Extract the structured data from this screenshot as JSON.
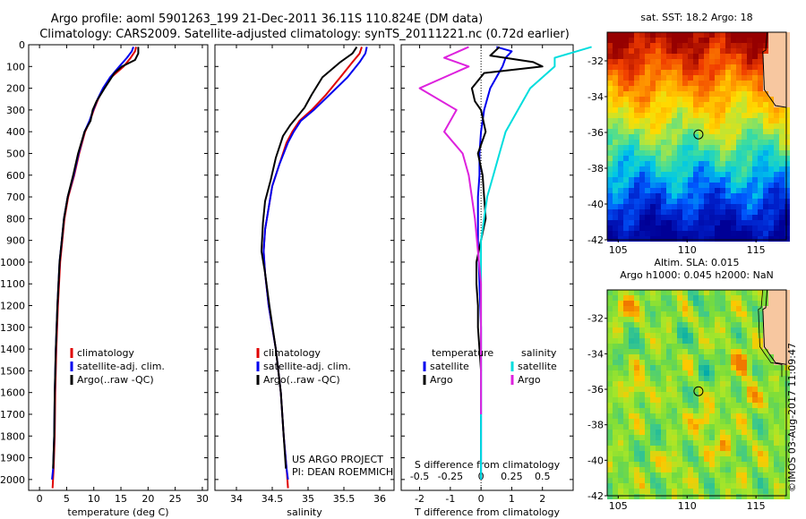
{
  "header": {
    "line1": "Argo profile: aoml 5901263_199 21-Dec-2011 36.11S 110.824E (DM data)",
    "line2": "Climatology: CARS2009. Satellite-adjusted climatology: synTS_20111221.nc (0.72d earlier)"
  },
  "side_text": "©IMOS 03-Aug-2017 11:09:47",
  "colors": {
    "climatology": "#e00000",
    "satellite": "#0000ee",
    "argo": "#000000",
    "cyan": "#00dddd",
    "magenta": "#dd22dd"
  },
  "chart_data": [
    {
      "id": "temperature",
      "type": "line",
      "xlabel": "temperature (deg C)",
      "xlim": [
        -2,
        31
      ],
      "xticks": [
        0,
        5,
        10,
        15,
        20,
        25,
        30
      ],
      "ylim": [
        0,
        2050
      ],
      "yticks": [
        0,
        100,
        200,
        300,
        400,
        500,
        600,
        700,
        800,
        900,
        1000,
        1100,
        1200,
        1300,
        1400,
        1500,
        1600,
        1700,
        1800,
        1900,
        2000
      ],
      "reversed_y": true,
      "legend": {
        "position": "lower-left",
        "entries": [
          "climatology",
          "satellite-adj. clim.",
          "Argo(..raw -QC)"
        ]
      },
      "series": [
        {
          "name": "climatology",
          "color": "climatology",
          "x": [
            17.8,
            17.6,
            16.8,
            15.5,
            13.2,
            11.8,
            10.8,
            10.0,
            9.3,
            8.4,
            7.3,
            6.4,
            5.3,
            4.6,
            4.2,
            3.8,
            3.4,
            3.1,
            2.9,
            2.8,
            2.6,
            2.4
          ],
          "y": [
            10,
            30,
            60,
            100,
            150,
            200,
            250,
            300,
            350,
            400,
            500,
            600,
            700,
            800,
            900,
            1000,
            1200,
            1400,
            1600,
            1800,
            1950,
            2040
          ]
        },
        {
          "name": "satellite-adj. clim.",
          "color": "satellite",
          "x": [
            17.3,
            17.0,
            16.1,
            14.7,
            13.0,
            11.7,
            10.7,
            9.9,
            9.2,
            8.3,
            7.2,
            6.3,
            5.2,
            4.5,
            4.1,
            3.7,
            3.3,
            3.0,
            2.8,
            2.7,
            2.5,
            2.3
          ],
          "y": [
            10,
            30,
            60,
            100,
            150,
            200,
            250,
            300,
            350,
            400,
            500,
            600,
            700,
            800,
            900,
            1000,
            1200,
            1400,
            1600,
            1800,
            1950,
            2000
          ]
        },
        {
          "name": "Argo(..raw -QC)",
          "color": "argo",
          "x": [
            18.2,
            18.2,
            17.6,
            15.2,
            13.8,
            12.0,
            10.5,
            9.8,
            9.4,
            8.3,
            7.1,
            6.2,
            5.2,
            4.5,
            4.1,
            3.7,
            3.3,
            3.0,
            2.8,
            2.7,
            2.5
          ],
          "y": [
            10,
            40,
            70,
            100,
            130,
            200,
            260,
            300,
            350,
            400,
            500,
            600,
            700,
            800,
            900,
            1000,
            1200,
            1400,
            1600,
            1800,
            1950
          ]
        }
      ]
    },
    {
      "id": "salinity",
      "type": "line",
      "xlabel": "salinity",
      "xlim": [
        33.7,
        36.2
      ],
      "xticks": [
        34,
        34.5,
        35,
        35.5,
        36
      ],
      "xticklabels": [
        "34",
        "34.5",
        "35",
        "35.5",
        "36"
      ],
      "ylim": [
        0,
        2050
      ],
      "reversed_y": true,
      "legend": {
        "position": "lower-left",
        "entries": [
          "climatology",
          "satellite-adj. clim.",
          "Argo(..raw -QC)"
        ]
      },
      "annotation": [
        "US ARGO PROJECT",
        "PI: DEAN ROEMMICH"
      ],
      "series": [
        {
          "name": "climatology",
          "color": "climatology",
          "x": [
            35.75,
            35.72,
            35.62,
            35.45,
            35.25,
            35.05,
            34.88,
            34.78,
            34.7,
            34.6,
            34.5,
            34.45,
            34.4,
            34.38,
            34.4,
            34.45,
            34.55,
            34.62,
            34.66,
            34.7,
            34.72
          ],
          "y": [
            10,
            40,
            80,
            150,
            230,
            300,
            350,
            400,
            450,
            550,
            650,
            750,
            850,
            950,
            1050,
            1200,
            1400,
            1600,
            1800,
            1950,
            2040
          ]
        },
        {
          "name": "satellite-adj. clim.",
          "color": "satellite",
          "x": [
            35.82,
            35.8,
            35.72,
            35.55,
            35.3,
            35.08,
            34.9,
            34.8,
            34.72,
            34.6,
            34.5,
            34.45,
            34.4,
            34.38,
            34.4,
            34.45,
            34.55,
            34.62,
            34.66,
            34.7,
            34.72
          ],
          "y": [
            10,
            40,
            80,
            150,
            230,
            300,
            350,
            400,
            450,
            550,
            650,
            750,
            850,
            950,
            1050,
            1200,
            1400,
            1600,
            1800,
            1950,
            2000
          ]
        },
        {
          "name": "Argo(..raw -QC)",
          "color": "argo",
          "x": [
            35.68,
            35.62,
            35.45,
            35.2,
            35.05,
            34.95,
            34.85,
            34.75,
            34.65,
            34.55,
            34.48,
            34.4,
            34.37,
            34.35,
            34.4,
            34.46,
            34.55,
            34.62,
            34.66,
            34.69
          ],
          "y": [
            10,
            40,
            80,
            150,
            230,
            290,
            330,
            370,
            420,
            520,
            620,
            720,
            820,
            950,
            1050,
            1200,
            1400,
            1600,
            1800,
            1950
          ]
        }
      ]
    },
    {
      "id": "difference",
      "type": "line",
      "xlabel": "T difference from climatology",
      "x2label": "S difference from climatology",
      "xlim": [
        -2.6,
        3.0
      ],
      "xticks": [
        -2,
        -1,
        0,
        1,
        2
      ],
      "x2ticks": [
        -0.5,
        -0.25,
        0,
        0.25,
        0.5
      ],
      "x2ticklabels": [
        "-0.5",
        "-0.25",
        "0",
        "0.25",
        "0.5"
      ],
      "ylim": [
        0,
        2050
      ],
      "reversed_y": true,
      "legend": {
        "position": "lower-middle",
        "groups": [
          {
            "title": "temperature",
            "entries": [
              "satellite",
              "Argo"
            ]
          },
          {
            "title": "salinity",
            "entries": [
              "satellite",
              "Argo"
            ]
          }
        ]
      },
      "series": [
        {
          "name": "satellite",
          "group": "temperature",
          "color": "satellite",
          "x": [
            0.5,
            1.0,
            0.8,
            0.7,
            0.5,
            0.3,
            0.2,
            0.1,
            0.05,
            0.0,
            -0.05,
            -0.05,
            -0.1,
            -0.1,
            -0.05,
            0.0,
            0.0,
            0.0,
            0.0,
            0.0
          ],
          "y": [
            10,
            30,
            60,
            100,
            150,
            200,
            250,
            300,
            350,
            400,
            500,
            600,
            700,
            900,
            1100,
            1300,
            1500,
            1700,
            1900,
            2000
          ]
        },
        {
          "name": "Argo",
          "group": "temperature",
          "color": "argo",
          "x": [
            0.6,
            0.3,
            1.7,
            2.0,
            0.1,
            -0.3,
            -0.2,
            0.0,
            0.15,
            -0.1,
            0.05,
            0.1,
            0.15,
            0.0,
            -0.15,
            -0.15,
            -0.1,
            -0.1,
            -0.05,
            0.0
          ],
          "y": [
            10,
            50,
            80,
            100,
            130,
            200,
            260,
            300,
            400,
            500,
            600,
            700,
            800,
            900,
            1000,
            1100,
            1200,
            1300,
            1400,
            1500
          ]
        },
        {
          "name": "satellite",
          "group": "salinity",
          "color": "cyan",
          "x": [
            0.9,
            0.6,
            0.6,
            0.4,
            0.3,
            0.2,
            0.15,
            0.1,
            0.05,
            0.0,
            0.0,
            0.0,
            0.0,
            0.0,
            0.0,
            0.0
          ],
          "y": [
            10,
            60,
            100,
            200,
            300,
            400,
            500,
            600,
            700,
            900,
            1100,
            1300,
            1500,
            1700,
            1900,
            2000
          ]
        },
        {
          "name": "Argo",
          "group": "salinity",
          "color": "magenta",
          "x": [
            -0.1,
            -0.3,
            -0.1,
            -0.5,
            -0.2,
            -0.3,
            -0.15,
            -0.1,
            -0.05,
            0.0,
            0.0,
            0.0
          ],
          "y": [
            10,
            60,
            100,
            200,
            300,
            400,
            500,
            600,
            800,
            1100,
            1400,
            1700
          ]
        }
      ]
    },
    {
      "id": "sst_map",
      "type": "heatmap",
      "title": "sat. SST: 18.2 Argo: 18",
      "xlim": [
        104.2,
        117.2
      ],
      "xticks": [
        105,
        110,
        115
      ],
      "ylim": [
        -42,
        -30.4
      ],
      "yticks": [
        -42,
        -40,
        -38,
        -36,
        -34,
        -32
      ],
      "profile_location": [
        110.824,
        -36.11
      ]
    },
    {
      "id": "sla_map",
      "type": "heatmap",
      "title": [
        "Altim. SLA: 0.015",
        "Argo h1000: 0.045 h2000: NaN"
      ],
      "xlim": [
        104.2,
        117.2
      ],
      "xticks": [
        105,
        110,
        115
      ],
      "ylim": [
        -42,
        -30.4
      ],
      "yticks": [
        -42,
        -40,
        -38,
        -36,
        -34,
        -32
      ],
      "profile_location": [
        110.824,
        -36.11
      ]
    }
  ]
}
